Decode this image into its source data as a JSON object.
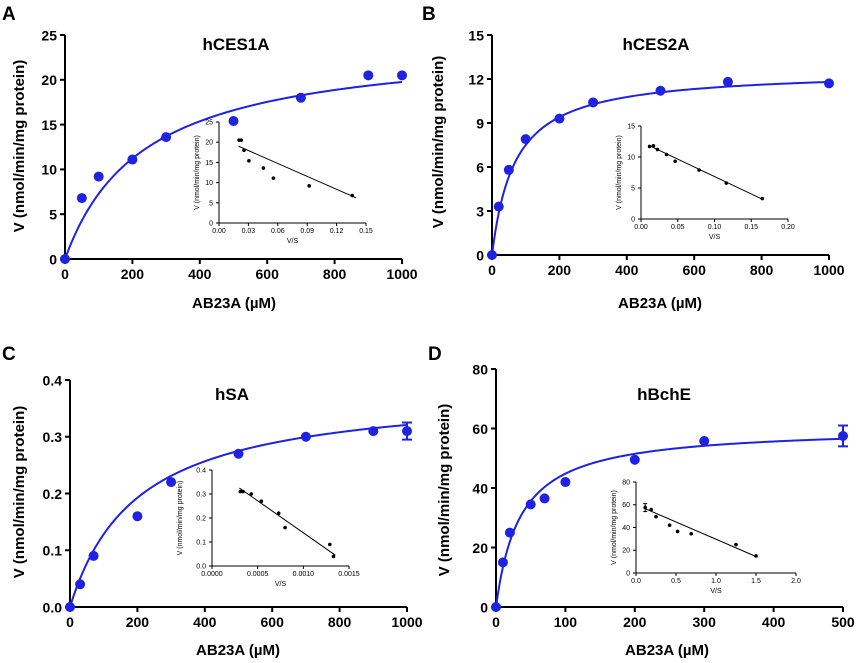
{
  "figure": {
    "colors": {
      "main": "#1f22e0",
      "inset": "#000000",
      "axis": "#000000"
    }
  },
  "chart_data": [
    {
      "panel": "A",
      "type": "scatter",
      "title": "hCES1A",
      "xlabel": "AB23A (µM)",
      "ylabel": "V (nmol/min/mg protein)",
      "xlim": [
        0,
        1000
      ],
      "ylim": [
        0,
        25
      ],
      "xticks": [
        "0",
        "200",
        "400",
        "600",
        "800",
        "1000"
      ],
      "yticks": [
        "0",
        "5",
        "10",
        "15",
        "20",
        "25"
      ],
      "x": [
        0,
        50,
        100,
        200,
        300,
        500,
        700,
        900,
        1000
      ],
      "y": [
        0,
        6.8,
        9.2,
        11.1,
        13.6,
        15.4,
        18.0,
        20.5,
        20.5
      ],
      "fit": {
        "model": "michaelis-menten",
        "vmax": 24.4,
        "km": 235
      },
      "inset": {
        "type": "scatter",
        "xlabel": "V/S",
        "ylabel": "V (nmol/min/mg protein)",
        "xlim": [
          0,
          0.15
        ],
        "ylim": [
          0,
          25
        ],
        "xticks": [
          "0.00",
          "0.03",
          "0.06",
          "0.09",
          "0.12",
          "0.15"
        ],
        "yticks": [
          "0",
          "5",
          "10",
          "15",
          "20",
          "25"
        ],
        "x": [
          0.0205,
          0.0228,
          0.0255,
          0.0305,
          0.0453,
          0.0555,
          0.092,
          0.136
        ],
        "y": [
          20.5,
          20.5,
          18.0,
          15.4,
          13.6,
          11.1,
          9.2,
          6.8
        ],
        "line": {
          "x": [
            0.02,
            0.14
          ],
          "y": [
            19.0,
            6.2
          ]
        }
      }
    },
    {
      "panel": "B",
      "type": "scatter",
      "title": "hCES2A",
      "xlabel": "AB23A (µM)",
      "ylabel": "V (nmol/min/mg protein)",
      "xlim": [
        0,
        1000
      ],
      "ylim": [
        0,
        15
      ],
      "xticks": [
        "0",
        "200",
        "400",
        "600",
        "800",
        "1000"
      ],
      "yticks": [
        "0",
        "3",
        "6",
        "9",
        "12",
        "15"
      ],
      "x": [
        0,
        20,
        50,
        100,
        200,
        300,
        500,
        700,
        1000
      ],
      "y": [
        0,
        3.3,
        5.8,
        7.9,
        9.3,
        10.4,
        11.2,
        11.8,
        11.7
      ],
      "fit": {
        "model": "michaelis-menten",
        "vmax": 12.6,
        "km": 68
      },
      "inset": {
        "type": "scatter",
        "xlabel": "V/S",
        "ylabel": "V (nmol/min/mg protein)",
        "xlim": [
          0,
          0.2
        ],
        "ylim": [
          0,
          15
        ],
        "xticks": [
          "0.00",
          "0.05",
          "0.10",
          "0.15",
          "0.20"
        ],
        "yticks": [
          "0",
          "5",
          "10",
          "15"
        ],
        "x": [
          0.0117,
          0.0169,
          0.0224,
          0.0347,
          0.0465,
          0.079,
          0.116,
          0.165
        ],
        "y": [
          11.7,
          11.8,
          11.2,
          10.4,
          9.3,
          7.9,
          5.8,
          3.3
        ],
        "line": {
          "x": [
            0.01,
            0.165
          ],
          "y": [
            11.9,
            3.2
          ]
        }
      }
    },
    {
      "panel": "C",
      "type": "scatter",
      "title": "hSA",
      "xlabel": "AB23A (µM)",
      "ylabel": "V (nmol/min/mg protein)",
      "xlim": [
        0,
        1000
      ],
      "ylim": [
        0,
        0.4
      ],
      "xticks": [
        "0",
        "200",
        "400",
        "600",
        "800",
        "1000"
      ],
      "yticks": [
        "0.0",
        "0.1",
        "0.2",
        "0.3",
        "0.4"
      ],
      "x": [
        0,
        30,
        70,
        200,
        300,
        500,
        700,
        900,
        1000
      ],
      "y": [
        0,
        0.04,
        0.09,
        0.16,
        0.22,
        0.27,
        0.3,
        0.31,
        0.31
      ],
      "yerr": [
        0,
        0,
        0,
        0,
        0,
        0,
        0,
        0,
        0.015
      ],
      "fit": {
        "model": "michaelis-menten",
        "vmax": 0.385,
        "km": 200
      },
      "inset": {
        "type": "scatter",
        "xlabel": "V/S",
        "ylabel": "V (nmol/min/mg protein)",
        "xlim": [
          0,
          0.0015
        ],
        "ylim": [
          0,
          0.4
        ],
        "xticks": [
          "0.0000",
          "0.0005",
          "0.0010",
          "0.0015"
        ],
        "yticks": [
          "0.0",
          "0.1",
          "0.2",
          "0.3",
          "0.4"
        ],
        "x": [
          0.00031,
          0.00034,
          0.00043,
          0.00054,
          0.00073,
          0.0008,
          0.00129,
          0.00133
        ],
        "y": [
          0.31,
          0.31,
          0.3,
          0.27,
          0.22,
          0.16,
          0.09,
          0.04
        ],
        "line": {
          "x": [
            0.0003,
            0.00135
          ],
          "y": [
            0.325,
            0.045
          ]
        }
      }
    },
    {
      "panel": "D",
      "type": "scatter",
      "title": "hBchE",
      "xlabel": "AB23A (µM)",
      "ylabel": "V (nmol/min/mg protein)",
      "xlim": [
        0,
        500
      ],
      "ylim": [
        0,
        80
      ],
      "xticks": [
        "0",
        "100",
        "200",
        "300",
        "400",
        "500"
      ],
      "yticks": [
        "0",
        "20",
        "40",
        "60",
        "80"
      ],
      "x": [
        0,
        10,
        20,
        50,
        70,
        100,
        200,
        300,
        500
      ],
      "y": [
        0,
        15,
        25,
        34.5,
        36.5,
        42,
        49.5,
        55.8,
        57.5
      ],
      "yerr": [
        0,
        0,
        0,
        0,
        0,
        0,
        0,
        0,
        3.5
      ],
      "fit": {
        "model": "michaelis-menten",
        "vmax": 60.5,
        "km": 35
      },
      "inset": {
        "type": "scatter",
        "xlabel": "V/S",
        "ylabel": "V (nmol/min/mg protein)",
        "xlim": [
          0,
          2.0
        ],
        "ylim": [
          0,
          80
        ],
        "xticks": [
          "0.0",
          "0.5",
          "1.0",
          "1.5",
          "2.0"
        ],
        "yticks": [
          "0",
          "20",
          "40",
          "60",
          "80"
        ],
        "x": [
          0.115,
          0.19,
          0.25,
          0.42,
          0.52,
          0.69,
          1.25,
          1.5
        ],
        "y": [
          57.5,
          55.8,
          49.5,
          42,
          36.5,
          34.5,
          25,
          15
        ],
        "yerr": [
          3.5,
          0,
          0,
          0,
          0,
          0,
          0,
          0
        ],
        "line": {
          "x": [
            0.1,
            1.5
          ],
          "y": [
            57.0,
            14.5
          ]
        }
      }
    }
  ]
}
